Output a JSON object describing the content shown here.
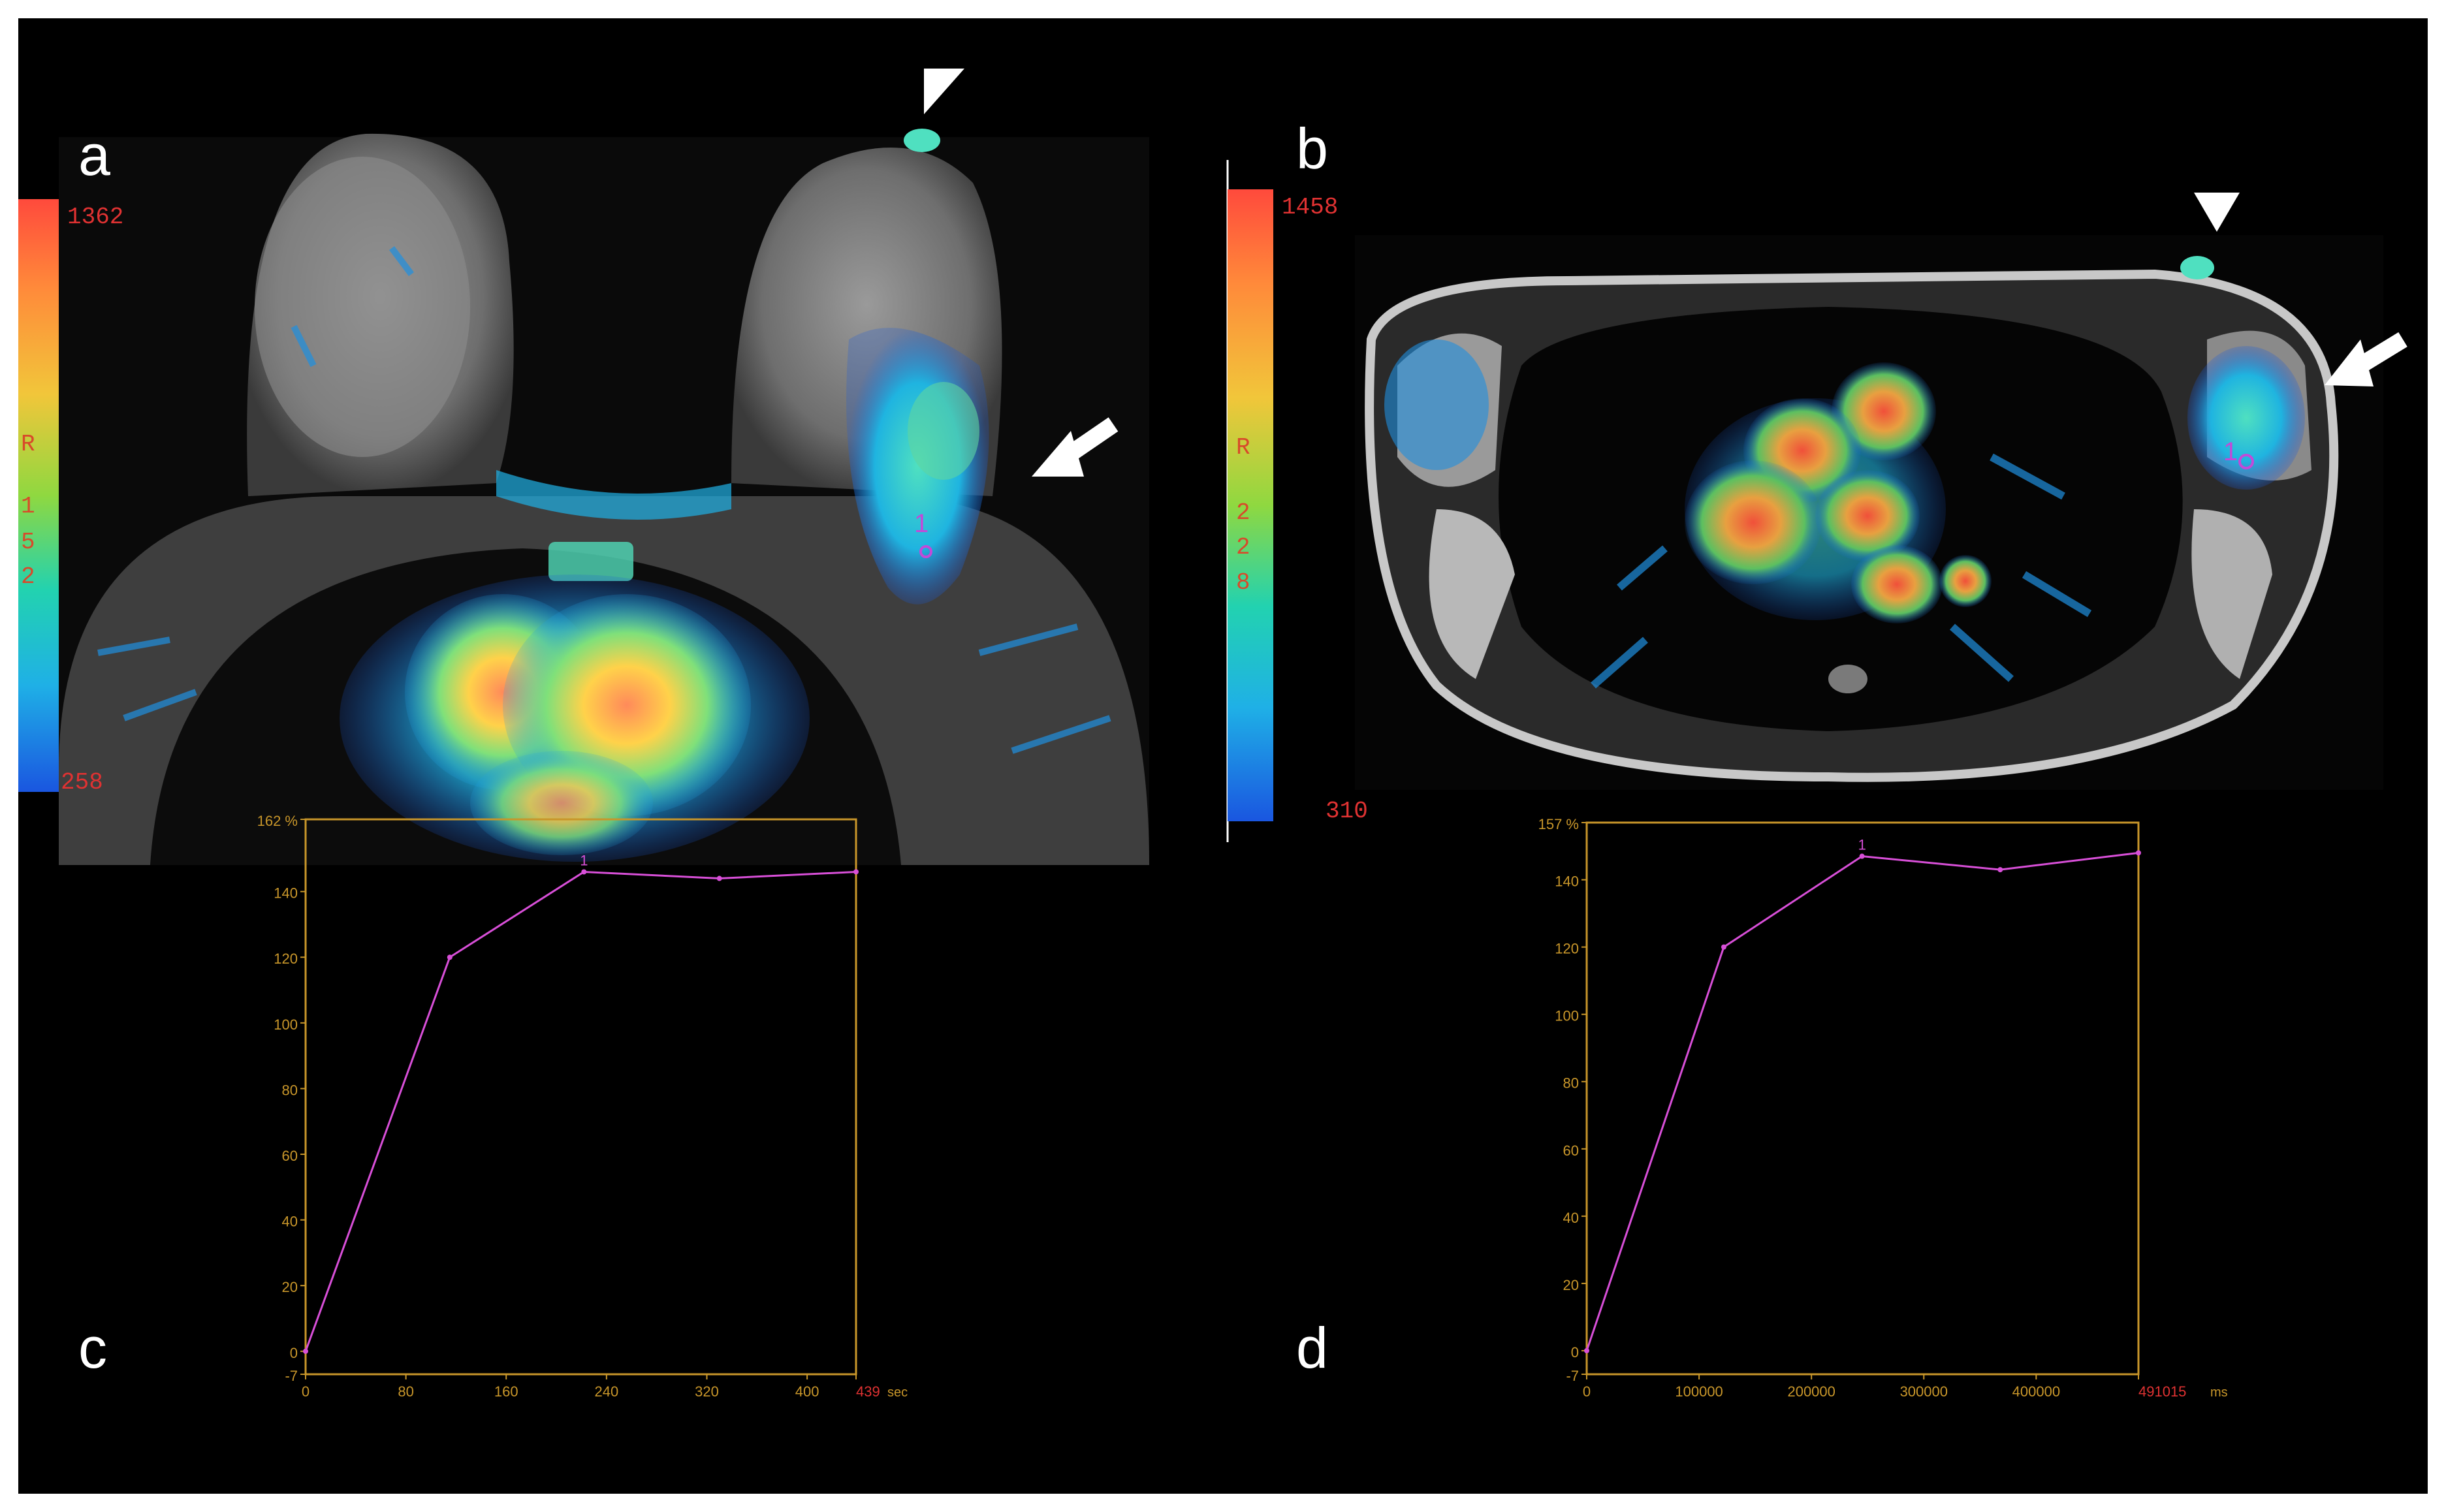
{
  "figure": {
    "panels": {
      "a": {
        "label": "a",
        "colorbar": {
          "max": "1362",
          "min": "258",
          "center": [
            "R",
            "1",
            "5",
            "2"
          ]
        },
        "roi_label": "1"
      },
      "b": {
        "label": "b",
        "colorbar": {
          "max": "1458",
          "min": "310",
          "center": [
            "R",
            "2",
            "2",
            "8"
          ]
        },
        "roi_label": "1"
      },
      "c": {
        "label": "c"
      },
      "d": {
        "label": "d"
      }
    },
    "colors": {
      "background": "#000000",
      "frame": "#ffffff",
      "curve": "#d84fd8",
      "axis": "#c8962a",
      "tick_text": "#c8962a",
      "colorbar_text": "#e03232"
    },
    "annotations": {
      "arrowhead": "arrowhead-icon",
      "arrow": "arrow-icon"
    }
  },
  "chart_data": [
    {
      "type": "line",
      "panel": "c",
      "x": [
        0,
        115,
        222,
        330,
        439
      ],
      "y": [
        0,
        120,
        146,
        144,
        146
      ],
      "xlim": [
        0,
        439
      ],
      "ylim": [
        -7,
        162
      ],
      "x_ticks": [
        "0",
        "80",
        "160",
        "240",
        "320",
        "400",
        "439"
      ],
      "x_unit": "sec",
      "y_ticks": [
        "-7",
        "0",
        "20",
        "40",
        "60",
        "80",
        "100",
        "120",
        "140",
        "162"
      ],
      "y_top_label": "162 %",
      "point_marker": "1"
    },
    {
      "type": "line",
      "panel": "d",
      "x": [
        0,
        122000,
        245000,
        368000,
        491015
      ],
      "y": [
        0,
        120,
        147,
        143,
        148
      ],
      "xlim": [
        0,
        491015
      ],
      "ylim": [
        -7,
        157
      ],
      "x_ticks": [
        "0",
        "100000",
        "200000",
        "300000",
        "400000",
        "491015"
      ],
      "x_unit": "ms",
      "y_ticks": [
        "-7",
        "0",
        "20",
        "40",
        "60",
        "80",
        "100",
        "120",
        "140",
        "157"
      ],
      "y_top_label": "157 %",
      "point_marker": "1"
    }
  ]
}
